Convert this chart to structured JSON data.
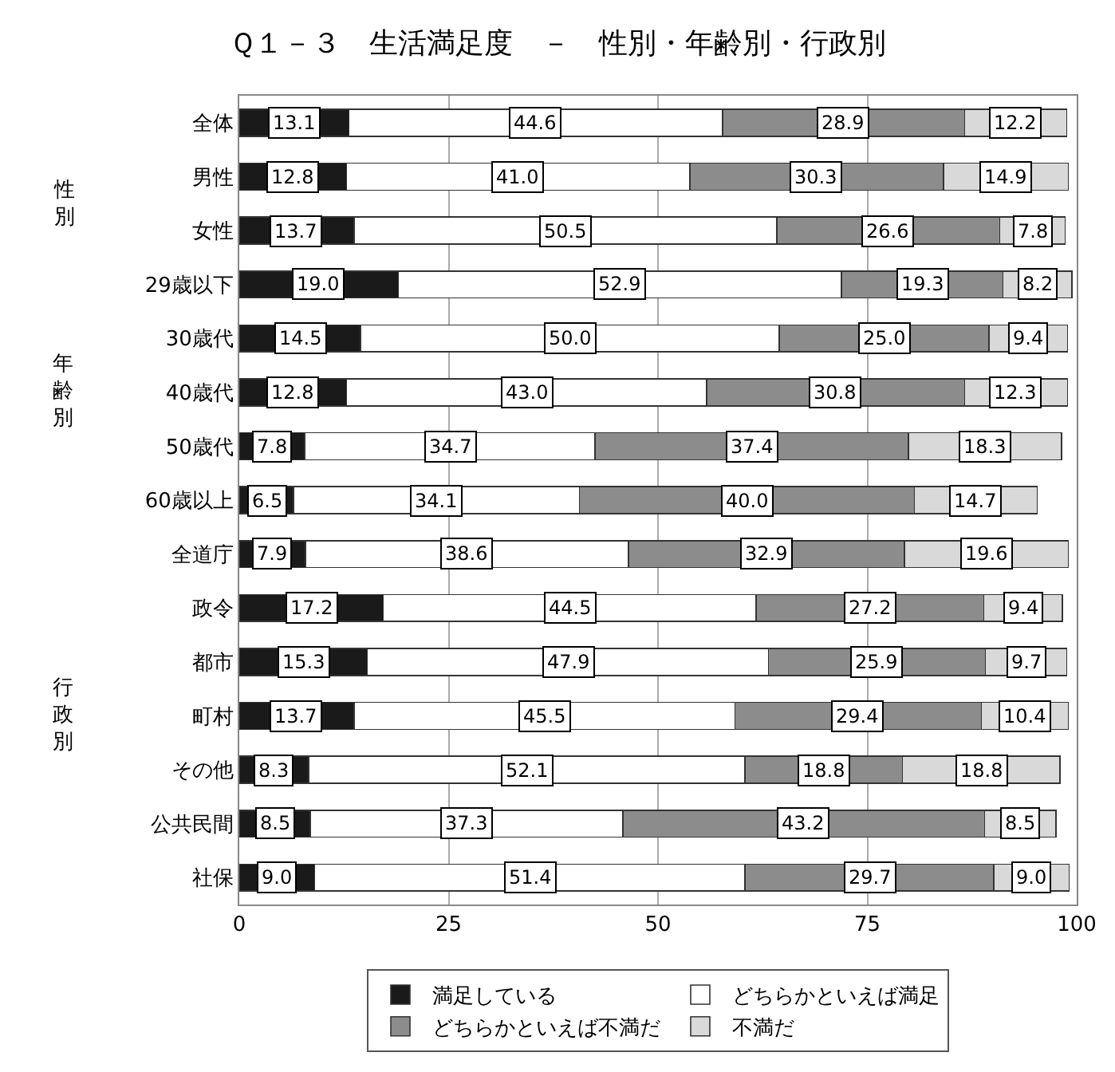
{
  "chart_data": {
    "type": "bar",
    "orientation": "horizontal",
    "stacked": true,
    "title": "Ｑ１－３　生活満足度　－　性別・年齢別・行政別",
    "categories": [
      "全体",
      "男性",
      "女性",
      "29歳以下",
      "30歳代",
      "40歳代",
      "50歳代",
      "60歳以上",
      "全道庁",
      "政令",
      "都市",
      "町村",
      "その他",
      "公共民間",
      "社保"
    ],
    "series": [
      {
        "name": "満足している",
        "color": "#1a1a1a",
        "values": [
          13.1,
          12.8,
          13.7,
          19.0,
          14.5,
          12.8,
          7.8,
          6.5,
          7.9,
          17.2,
          15.3,
          13.7,
          8.3,
          8.5,
          9.0
        ],
        "value_labels": [
          "13.1",
          "12.8",
          "13.7",
          "19.0",
          "14.5",
          "12.8",
          "7.8",
          "6.5",
          "7.9",
          "17.2",
          "15.3",
          "13.7",
          "8.3",
          "8.5",
          "9.0"
        ]
      },
      {
        "name": "どちらかといえば満足",
        "color": "#ffffff",
        "values": [
          44.6,
          41.0,
          50.5,
          52.9,
          50.0,
          43.0,
          34.7,
          34.1,
          38.6,
          44.5,
          47.9,
          45.5,
          52.1,
          37.3,
          51.4
        ],
        "value_labels": [
          "44.6",
          "41.0",
          "50.5",
          "52.9",
          "50.0",
          "43.0",
          "34.7",
          "34.1",
          "38.6",
          "44.5",
          "47.9",
          "45.5",
          "52.1",
          "37.3",
          "51.4"
        ]
      },
      {
        "name": "どちらかといえば不満だ",
        "color": "#8c8c8c",
        "values": [
          28.9,
          30.3,
          26.6,
          19.3,
          25.0,
          30.8,
          37.4,
          40.0,
          32.9,
          27.2,
          25.9,
          29.4,
          18.8,
          43.2,
          29.7
        ],
        "value_labels": [
          "28.9",
          "30.3",
          "26.6",
          "19.3",
          "25.0",
          "30.8",
          "37.4",
          "40.0",
          "32.9",
          "27.2",
          "25.9",
          "29.4",
          "18.8",
          "43.2",
          "29.7"
        ]
      },
      {
        "name": "不満だ",
        "color": "#d9d9d9",
        "values": [
          12.2,
          14.9,
          7.8,
          8.2,
          9.4,
          12.3,
          18.3,
          14.7,
          19.6,
          9.4,
          9.7,
          10.4,
          18.8,
          8.5,
          9.0
        ],
        "value_labels": [
          "12.2",
          "14.9",
          "7.8",
          "8.2",
          "9.4",
          "12.3",
          "18.3",
          "14.7",
          "19.6",
          "9.4",
          "9.7",
          "10.4",
          "18.8",
          "8.5",
          "9.0"
        ]
      }
    ],
    "xlim": [
      0,
      100
    ],
    "xticks": [
      0,
      25,
      50,
      75,
      100
    ],
    "grid": "x",
    "legend": "bottom",
    "annotations": [
      "性別",
      "年齢別",
      "行政別"
    ]
  }
}
